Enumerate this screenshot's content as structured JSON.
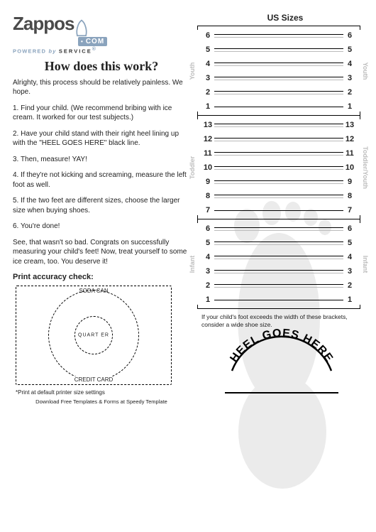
{
  "logo": {
    "brand": "Zappos",
    "dotcom": "COM",
    "tagline_a": "POWERED",
    "tagline_b": "by",
    "tagline_c": "SERVICE"
  },
  "heading": "How does this work?",
  "intro": "Alrighty, this process should be relatively painless. We hope.",
  "steps": [
    "1. Find your child. (We recommend bribing with ice cream. It worked for our test subjects.)",
    "2. Have your child stand with their right heel lining up with the \"HEEL GOES HERE\" black line.",
    "3. Then, measure! YAY!",
    "4. If they're not kicking and screaming, measure the left foot as well.",
    "5. If the two feet are different sizes, choose the larger size when buying shoes.",
    "6. You're done!"
  ],
  "outro": "See, that wasn't so bad. Congrats on successfully measuring your child's feet! Now, treat yourself to some ice cream, too. You deserve it!",
  "pac": {
    "title": "Print accuracy check:",
    "soda": "SODA CAN",
    "quarter": "QUART ER",
    "cc": "CREDIT CARD",
    "note": "*Print at default printer size settings",
    "download": "Download Free Templates & Forms at Speedy Template"
  },
  "chart": {
    "title": "US Sizes",
    "sections": [
      {
        "label_l": "Youth",
        "label_r": "Youth",
        "sizes": [
          6,
          5,
          4,
          3,
          2,
          1
        ]
      },
      {
        "label_l": "Toddler",
        "label_r": "Toddler/Youth",
        "sizes": [
          13,
          12,
          11,
          10,
          9,
          8,
          7
        ]
      },
      {
        "label_l": "Infant",
        "label_r": "Infant",
        "sizes": [
          6,
          5,
          4,
          3,
          2,
          1
        ]
      }
    ],
    "wide_note": "If your child's foot exceeds the width of these brackets, consider a wide shoe size.",
    "heel": "HEEL GOES HERE"
  }
}
